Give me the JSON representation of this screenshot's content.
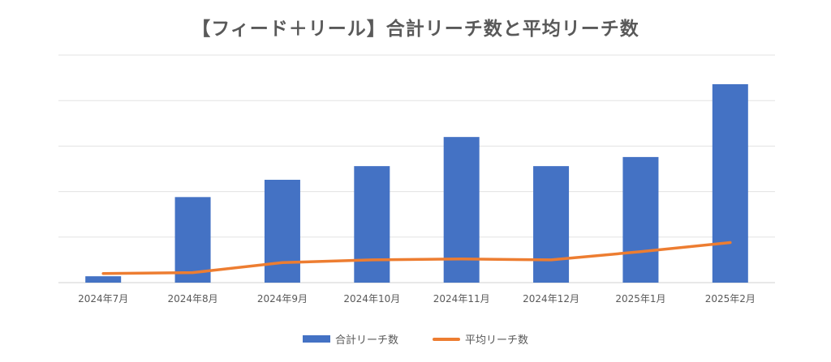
{
  "chart_data": {
    "type": "bar",
    "title": "【フィード＋リール】合計リーチ数と平均リーチ数",
    "categories": [
      "2024年7月",
      "2024年8月",
      "2024年9月",
      "2024年10月",
      "2024年11月",
      "2024年12月",
      "2025年1月",
      "2025年2月"
    ],
    "series": [
      {
        "name": "合計リーチ数",
        "type": "bar",
        "color": "#4472c4",
        "values": [
          3.5,
          47,
          56.5,
          64,
          80,
          64,
          69,
          109
        ]
      },
      {
        "name": "平均リーチ数",
        "type": "line",
        "color": "#ed7d31",
        "values": [
          5,
          5.5,
          11,
          12.5,
          13,
          12.5,
          17,
          22
        ]
      }
    ],
    "ylim": [
      0,
      125
    ],
    "y_gridlines": [
      0,
      25,
      50,
      75,
      100,
      125
    ],
    "y_tick_labels_visible": false,
    "grid": true,
    "legend_position": "bottom"
  }
}
